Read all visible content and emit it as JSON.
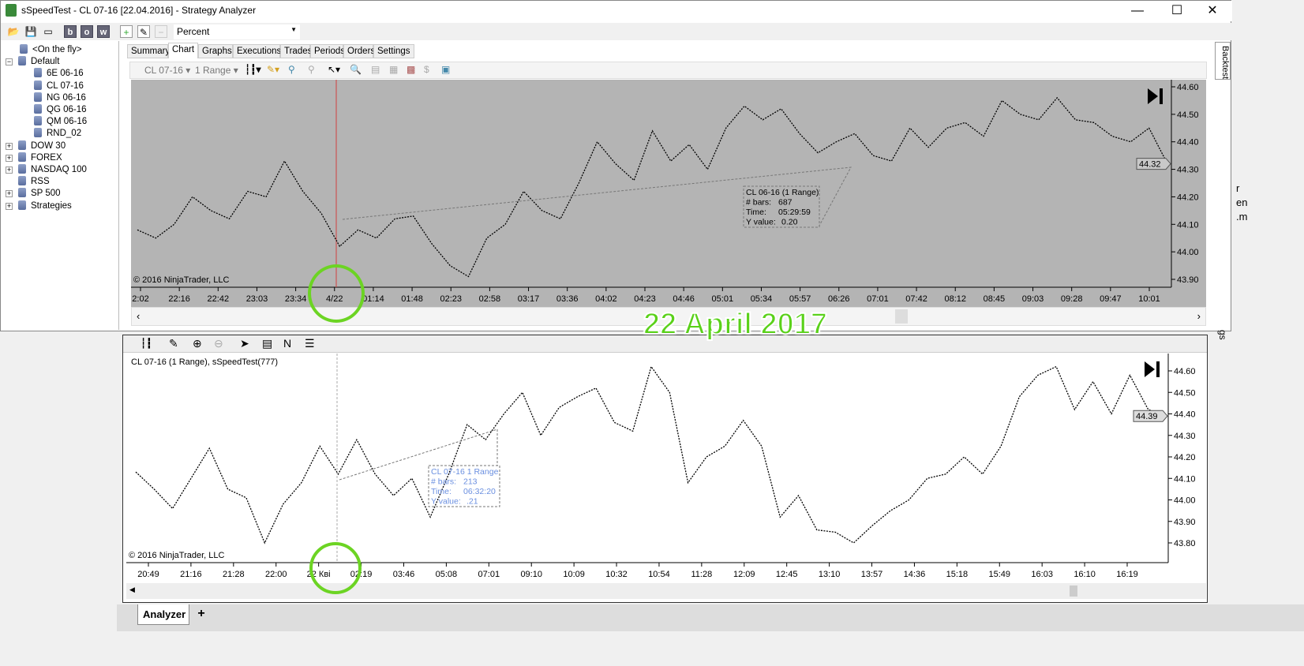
{
  "window": {
    "title": "sSpeedTest - CL 07-16 [22.04.2016] - Strategy Analyzer",
    "minimize": "—",
    "maximize": "☐",
    "close": "✕"
  },
  "toolbar": {
    "b_label": "b",
    "o_label": "o",
    "w_label": "w",
    "display_mode": "Percent"
  },
  "tree": [
    {
      "label": "<On the fly>",
      "level": 1
    },
    {
      "label": "Default",
      "level": 0,
      "expander": "−"
    },
    {
      "label": "6E 06-16",
      "level": 2
    },
    {
      "label": "CL 07-16",
      "level": 2
    },
    {
      "label": "NG 06-16",
      "level": 2
    },
    {
      "label": "QG 06-16",
      "level": 2
    },
    {
      "label": "QM 06-16",
      "level": 2
    },
    {
      "label": "RND_02",
      "level": 2
    },
    {
      "label": "DOW 30",
      "level": 0,
      "expander": "+"
    },
    {
      "label": "FOREX",
      "level": 0,
      "expander": "+"
    },
    {
      "label": "NASDAQ 100",
      "level": 0,
      "expander": "+"
    },
    {
      "label": "RSS",
      "level": 0
    },
    {
      "label": "SP 500",
      "level": 0,
      "expander": "+"
    },
    {
      "label": "Strategies",
      "level": 0,
      "expander": "+"
    }
  ],
  "tabs": [
    "Summary",
    "Chart",
    "Graphs",
    "Executions",
    "Trades",
    "Periods",
    "Orders",
    "Settings"
  ],
  "active_tab": "Chart",
  "chart_toolbar": {
    "instrument": "CL 07-16",
    "interval": "1 Range"
  },
  "side_tab": "Backtest",
  "side_clipped": [
    "r",
    "en",
    ".m",
    "gs"
  ],
  "top_chart": {
    "copyright": "© 2016 NinjaTrader, LLC",
    "y_ticks": [
      "44.60",
      "44.50",
      "44.40",
      "44.30",
      "44.20",
      "44.10",
      "44.00",
      "43.90"
    ],
    "x_ticks": [
      "2:02",
      "22:16",
      "22:42",
      "23:03",
      "23:34",
      "4/22",
      "01:14",
      "01:48",
      "02:23",
      "02:58",
      "03:17",
      "03:36",
      "04:02",
      "04:23",
      "04:46",
      "05:01",
      "05:34",
      "05:57",
      "06:26",
      "07:01",
      "07:42",
      "08:12",
      "08:45",
      "09:03",
      "09:28",
      "09:47",
      "10:01"
    ],
    "last_price": "44.32",
    "tooltip": {
      "title": "CL 06-16 (1 Range)",
      "bars_label": "# bars:",
      "bars": "687",
      "time_label": "Time:",
      "time": "05:29:59",
      "y_label": "Y value:",
      "y": "0.20"
    },
    "price_path": [
      44.08,
      44.05,
      44.1,
      44.2,
      44.15,
      44.12,
      44.22,
      44.2,
      44.33,
      44.22,
      44.14,
      44.02,
      44.08,
      44.05,
      44.12,
      44.13,
      44.03,
      43.95,
      43.91,
      44.05,
      44.1,
      44.22,
      44.15,
      44.12,
      44.25,
      44.4,
      44.32,
      44.26,
      44.44,
      44.33,
      44.39,
      44.3,
      44.45,
      44.53,
      44.48,
      44.52,
      44.43,
      44.36,
      44.4,
      44.43,
      44.35,
      44.33,
      44.45,
      44.38,
      44.45,
      44.47,
      44.42,
      44.55,
      44.5,
      44.48,
      44.56,
      44.48,
      44.47,
      44.42,
      44.4,
      44.45,
      44.32
    ]
  },
  "bottom_chart": {
    "header": "CL 07-16 (1 Range), sSpeedTest(777)",
    "copyright": "© 2016 NinjaTrader, LLC",
    "y_ticks": [
      "44.60",
      "44.50",
      "44.40",
      "44.30",
      "44.20",
      "44.10",
      "44.00",
      "43.90",
      "43.80"
    ],
    "x_ticks": [
      "20:49",
      "21:16",
      "21:28",
      "22:00",
      "22 Квi",
      "02:19",
      "03:46",
      "05:08",
      "07:01",
      "09:10",
      "10:09",
      "10:32",
      "10:54",
      "11:28",
      "12:09",
      "12:45",
      "13:10",
      "13:57",
      "14:36",
      "15:18",
      "15:49",
      "16:03",
      "16:10",
      "16:19"
    ],
    "last_price": "44.39",
    "tooltip": {
      "title": "CL 07-16 1 Range",
      "bars_label": "# bars:",
      "bars": "213",
      "time_label": "Time:",
      "time": "06:32:20",
      "y_label": "Y value:",
      "y": ".21"
    },
    "price_path": [
      44.13,
      44.05,
      43.96,
      44.1,
      44.24,
      44.05,
      44.01,
      43.8,
      43.98,
      44.08,
      44.25,
      44.12,
      44.28,
      44.12,
      44.02,
      44.1,
      43.92,
      44.12,
      44.35,
      44.28,
      44.4,
      44.5,
      44.3,
      44.43,
      44.48,
      44.52,
      44.36,
      44.32,
      44.62,
      44.5,
      44.08,
      44.2,
      44.25,
      44.37,
      44.25,
      43.92,
      44.02,
      43.86,
      43.85,
      43.8,
      43.88,
      43.95,
      44.0,
      44.1,
      44.12,
      44.2,
      44.12,
      44.25,
      44.48,
      44.58,
      44.62,
      44.42,
      44.55,
      44.4,
      44.58,
      44.42,
      44.39
    ]
  },
  "annotation": "22 April 2017",
  "bottom_tabs": {
    "analyzer": "Analyzer",
    "add": "+"
  },
  "colors": {
    "top_bg": "#b4b4b4",
    "annotation": "#5ad11a",
    "tooltip_blue": "#6a8fe0",
    "date_line": "#d04040"
  }
}
